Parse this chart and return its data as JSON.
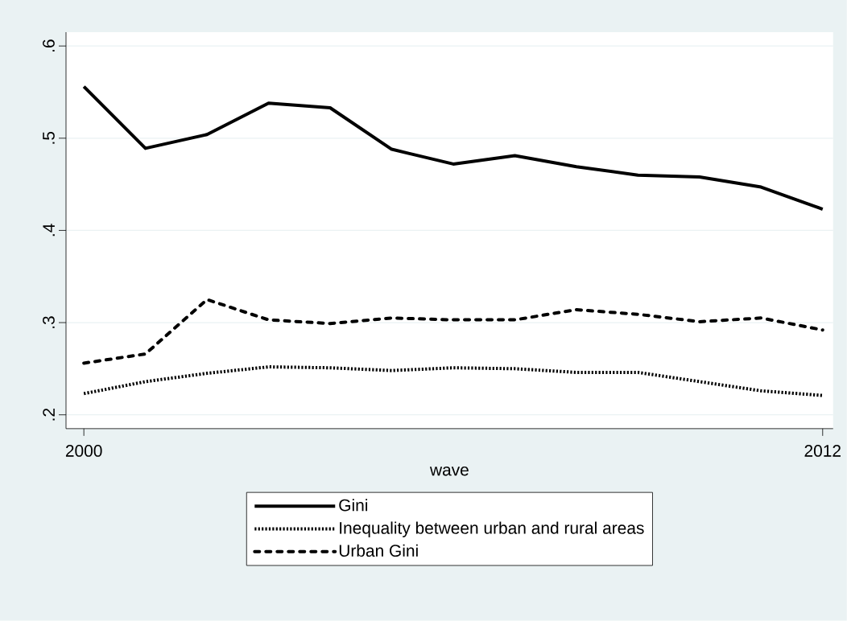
{
  "chart_data": {
    "type": "line",
    "xlabel": "wave",
    "x": [
      2000,
      2001,
      2002,
      2003,
      2004,
      2005,
      2006,
      2007,
      2008,
      2009,
      2010,
      2011,
      2012
    ],
    "series": [
      {
        "name": "Gini",
        "color": "#000000",
        "line_style": "solid",
        "values": [
          0.556,
          0.489,
          0.504,
          0.538,
          0.533,
          0.488,
          0.472,
          0.481,
          0.469,
          0.46,
          0.458,
          0.447,
          0.423
        ]
      },
      {
        "name": "Inequality between urban and rural areas",
        "color": "#000000",
        "line_style": "dotted",
        "values": [
          0.223,
          0.236,
          0.245,
          0.252,
          0.251,
          0.248,
          0.251,
          0.25,
          0.246,
          0.246,
          0.236,
          0.226,
          0.221
        ]
      },
      {
        "name": "Urban Gini",
        "color": "#000000",
        "line_style": "dashed",
        "values": [
          0.256,
          0.266,
          0.325,
          0.303,
          0.299,
          0.305,
          0.303,
          0.303,
          0.314,
          0.309,
          0.301,
          0.305,
          0.292
        ]
      }
    ],
    "xlim": [
      1999.71,
      2012.17
    ],
    "ylim": [
      0.185,
      0.615
    ],
    "xticks": [
      2000,
      2012
    ],
    "yticks": [
      {
        "value": 0.2,
        "label": ".2"
      },
      {
        "value": 0.3,
        "label": ".3"
      },
      {
        "value": 0.4,
        "label": ".4"
      },
      {
        "value": 0.5,
        "label": ".5"
      },
      {
        "value": 0.6,
        "label": ".6"
      }
    ],
    "grid": "y",
    "legend": "bottom",
    "marker": "none"
  }
}
